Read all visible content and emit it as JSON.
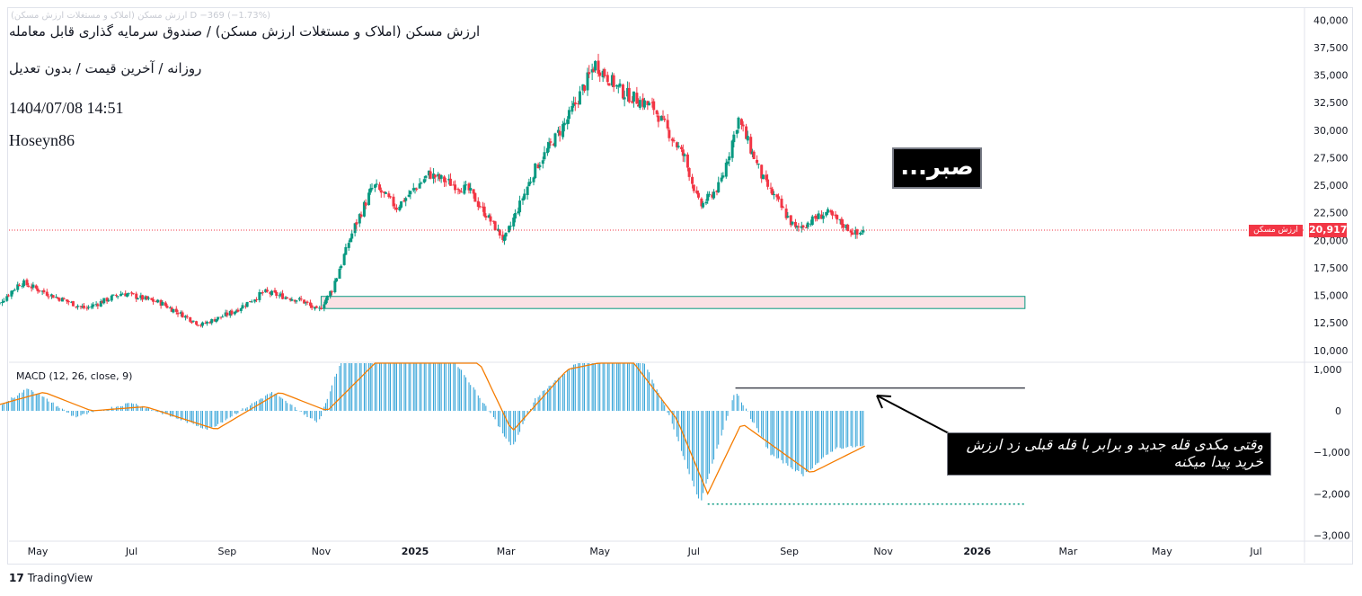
{
  "title_lines": {
    "line1": "ارزش مسکن (املاک و مستغلات ارزش مسکن) / صندوق سرمایه گذاری قابل معامله",
    "line2": "روزانه / آخرین قیمت / بدون تعدیل",
    "line3": "1404/07/08 14:51",
    "line4": "Hoseyn86"
  },
  "legend_faded": "ارزش مسکن (املاک و مستغلات ارزش مسکن) D  −369 (−1.73%)",
  "indicator_label": "MACD (12, 26, close, 9)",
  "price_badge": {
    "value": "20,917",
    "name": "ارزش مسکن",
    "color": "#f23645"
  },
  "annotations": {
    "sabr": "صبر...",
    "note": "وقتی مکدی قله جدید و برابر با قله قبلی زد ارزش خرید پیدا میکنه"
  },
  "branding": {
    "logo_mark": "17",
    "logo_text": "TradingView"
  },
  "colors": {
    "up_candle": "#089981",
    "down_candle": "#f23645",
    "histogram": "#2a9fd6",
    "signal_line": "#f57c00",
    "zone_fill": "#fbe1e4",
    "zone_border": "#089981",
    "last_price_line": "#f23645"
  },
  "chart_data": {
    "type": "candlestick",
    "price_axis": {
      "range": [
        9000,
        41000
      ],
      "ticks": [
        "40,000",
        "37,500",
        "35,000",
        "32,500",
        "30,000",
        "27,500",
        "25,000",
        "22,500",
        "20,000",
        "17,500",
        "15,000",
        "12,500",
        "10,000"
      ]
    },
    "macd_axis": {
      "range": [
        -3100,
        1150
      ],
      "ticks": [
        "1,000",
        "0",
        "−1,000",
        "−2,000",
        "−3,000"
      ]
    },
    "x_ticks": [
      {
        "label": "May",
        "date": "2024-05-01"
      },
      {
        "label": "Jul",
        "date": "2024-07-01"
      },
      {
        "label": "Sep",
        "date": "2024-09-01"
      },
      {
        "label": "Nov",
        "date": "2024-11-01"
      },
      {
        "label": "2025",
        "date": "2025-01-01",
        "bold": true
      },
      {
        "label": "Mar",
        "date": "2025-03-01"
      },
      {
        "label": "May",
        "date": "2025-05-01"
      },
      {
        "label": "Jul",
        "date": "2025-07-01"
      },
      {
        "label": "Sep",
        "date": "2025-09-01"
      },
      {
        "label": "Nov",
        "date": "2025-11-01"
      },
      {
        "label": "2026",
        "date": "2026-01-01",
        "bold": true
      },
      {
        "label": "Mar",
        "date": "2026-03-01"
      },
      {
        "label": "May",
        "date": "2026-05-01"
      },
      {
        "label": "Jul",
        "date": "2026-07-01"
      }
    ],
    "price_path": [
      {
        "date": "2024-04-01",
        "close": 13600
      },
      {
        "date": "2024-04-20",
        "close": 16200
      },
      {
        "date": "2024-05-10",
        "close": 15000
      },
      {
        "date": "2024-06-01",
        "close": 13800
      },
      {
        "date": "2024-06-25",
        "close": 15200
      },
      {
        "date": "2024-07-20",
        "close": 14300
      },
      {
        "date": "2024-08-15",
        "close": 12300
      },
      {
        "date": "2024-09-05",
        "close": 13500
      },
      {
        "date": "2024-09-25",
        "close": 15300
      },
      {
        "date": "2024-10-20",
        "close": 14500
      },
      {
        "date": "2024-10-30",
        "close": 13500
      },
      {
        "date": "2024-11-08",
        "close": 15500
      },
      {
        "date": "2024-11-22",
        "close": 21000
      },
      {
        "date": "2024-12-05",
        "close": 25000
      },
      {
        "date": "2024-12-20",
        "close": 23000
      },
      {
        "date": "2025-01-10",
        "close": 26000
      },
      {
        "date": "2025-02-05",
        "close": 24500
      },
      {
        "date": "2025-02-28",
        "close": 20000
      },
      {
        "date": "2025-03-20",
        "close": 26500
      },
      {
        "date": "2025-04-10",
        "close": 31000
      },
      {
        "date": "2025-04-28",
        "close": 36000
      },
      {
        "date": "2025-05-15",
        "close": 33500
      },
      {
        "date": "2025-06-05",
        "close": 32000
      },
      {
        "date": "2025-06-25",
        "close": 27500
      },
      {
        "date": "2025-07-05",
        "close": 23000
      },
      {
        "date": "2025-07-18",
        "close": 25000
      },
      {
        "date": "2025-07-30",
        "close": 31000
      },
      {
        "date": "2025-08-15",
        "close": 25500
      },
      {
        "date": "2025-09-05",
        "close": 21000
      },
      {
        "date": "2025-09-25",
        "close": 22500
      },
      {
        "date": "2025-10-15",
        "close": 20500
      },
      {
        "date": "2025-10-20",
        "close": 20917
      }
    ],
    "macd_histogram_path": [
      {
        "date": "2024-04-01",
        "value": 0
      },
      {
        "date": "2024-04-25",
        "value": 550
      },
      {
        "date": "2024-05-25",
        "value": -150
      },
      {
        "date": "2024-07-01",
        "value": 200
      },
      {
        "date": "2024-08-20",
        "value": -450
      },
      {
        "date": "2024-09-30",
        "value": 450
      },
      {
        "date": "2024-10-30",
        "value": -300
      },
      {
        "date": "2024-11-15",
        "value": 1300
      },
      {
        "date": "2025-01-25",
        "value": 1300
      },
      {
        "date": "2025-02-20",
        "value": -100
      },
      {
        "date": "2025-03-05",
        "value": -900
      },
      {
        "date": "2025-03-20",
        "value": 300
      },
      {
        "date": "2025-04-20",
        "value": 1300
      },
      {
        "date": "2025-05-28",
        "value": 1300
      },
      {
        "date": "2025-06-15",
        "value": -100
      },
      {
        "date": "2025-07-05",
        "value": -2250
      },
      {
        "date": "2025-07-28",
        "value": 500
      },
      {
        "date": "2025-08-20",
        "value": -1050
      },
      {
        "date": "2025-09-10",
        "value": -1550
      },
      {
        "date": "2025-10-01",
        "value": -900
      },
      {
        "date": "2025-10-20",
        "value": -850
      }
    ],
    "macd_signal_path": [
      {
        "date": "2024-04-01",
        "value": 100
      },
      {
        "date": "2024-05-05",
        "value": 450
      },
      {
        "date": "2024-06-05",
        "value": 0
      },
      {
        "date": "2024-07-10",
        "value": 100
      },
      {
        "date": "2024-08-25",
        "value": -450
      },
      {
        "date": "2024-10-05",
        "value": 450
      },
      {
        "date": "2024-11-05",
        "value": 0
      },
      {
        "date": "2024-12-10",
        "value": 1300
      },
      {
        "date": "2025-02-10",
        "value": 1300
      },
      {
        "date": "2025-03-05",
        "value": -500
      },
      {
        "date": "2025-04-10",
        "value": 1000
      },
      {
        "date": "2025-05-20",
        "value": 1300
      },
      {
        "date": "2025-06-20",
        "value": -200
      },
      {
        "date": "2025-07-10",
        "value": -2000
      },
      {
        "date": "2025-08-01",
        "value": -300
      },
      {
        "date": "2025-09-15",
        "value": -1500
      },
      {
        "date": "2025-10-20",
        "value": -850
      }
    ],
    "support_zone": {
      "low": 13800,
      "high": 14900,
      "from": "2024-11-01",
      "to": "2026-02-01"
    },
    "last_price": 20917,
    "macd_peak_level": 550,
    "macd_trough_level": -2250,
    "trend_lines": [
      {
        "from": "2025-07-28",
        "to": "2026-02-01",
        "value": 550
      },
      {
        "from": "2025-07-10",
        "to": "2026-02-01",
        "value": -2250
      }
    ]
  }
}
